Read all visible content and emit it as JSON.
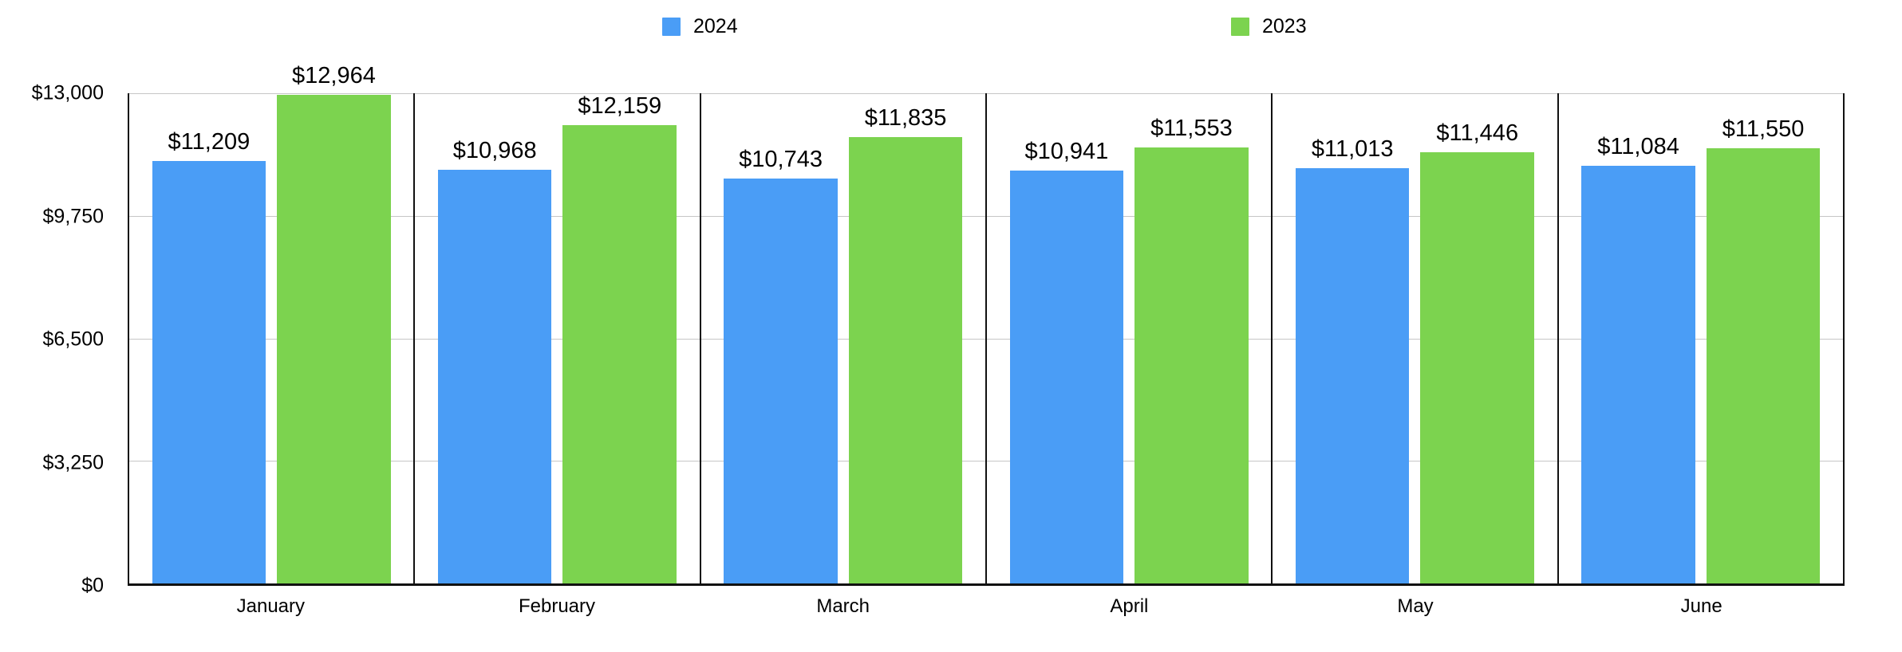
{
  "chart_data": {
    "type": "bar",
    "title": "",
    "xlabel": "",
    "ylabel": "",
    "categories": [
      "January",
      "February",
      "March",
      "April",
      "May",
      "June"
    ],
    "series": [
      {
        "name": "2024",
        "color": "#4A9DF6",
        "values": [
          11209,
          10968,
          10743,
          10941,
          11013,
          11084
        ],
        "labels": [
          "$11,209",
          "$10,968",
          "$10,743",
          "$10,941",
          "$11,013",
          "$11,084"
        ]
      },
      {
        "name": "2023",
        "color": "#7CD34F",
        "values": [
          12964,
          12159,
          11835,
          11553,
          11446,
          11550
        ],
        "labels": [
          "$12,964",
          "$12,159",
          "$11,835",
          "$11,553",
          "$11,446",
          "$11,550"
        ]
      }
    ],
    "ylim": [
      0,
      13000
    ],
    "yticks": [
      {
        "value": 13000,
        "label": "$13,000"
      },
      {
        "value": 9750,
        "label": "$9,750"
      },
      {
        "value": 6500,
        "label": "$6,500"
      },
      {
        "value": 3250,
        "label": "$3,250"
      },
      {
        "value": 0,
        "label": "$0"
      }
    ],
    "grid": "horizontal gridlines at each y tick, drawn behind bars",
    "legend_position": "top",
    "value_prefix": "$"
  },
  "colors": {
    "series_2024": "#4A9DF6",
    "series_2023": "#7CD34F",
    "axis_line": "#111111",
    "gridline": "#C6C6C6",
    "background": "#FFFFFF",
    "text": "#000000"
  }
}
